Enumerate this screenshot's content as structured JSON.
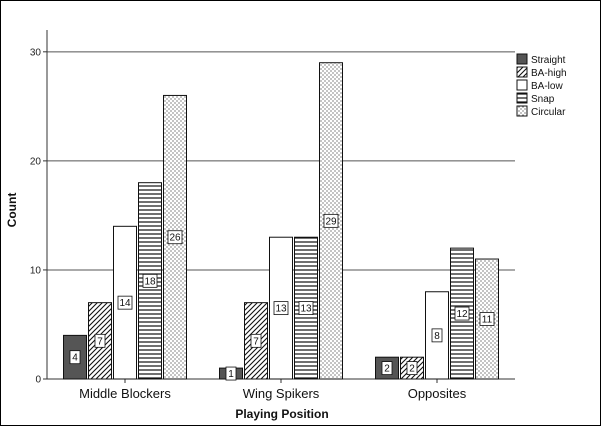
{
  "chart_data": {
    "type": "bar",
    "xlabel": "Playing Position",
    "ylabel": "Count",
    "ylim": [
      0,
      32
    ],
    "yticks": [
      0,
      10,
      20,
      30
    ],
    "grid": "horizontal",
    "legend_position": "top-right",
    "categories": [
      "Middle Blockers",
      "Wing Spikers",
      "Opposites"
    ],
    "series": [
      {
        "name": "Straight",
        "values": [
          4,
          1,
          2
        ],
        "pattern": "solid",
        "color": "#555555"
      },
      {
        "name": "BA-high",
        "values": [
          7,
          7,
          2
        ],
        "pattern": "diagonal",
        "color": "#ffffff"
      },
      {
        "name": "BA-low",
        "values": [
          14,
          13,
          8
        ],
        "pattern": "none",
        "color": "#ffffff"
      },
      {
        "name": "Snap",
        "values": [
          18,
          13,
          12
        ],
        "pattern": "horizontal",
        "color": "#ffffff"
      },
      {
        "name": "Circular",
        "values": [
          26,
          29,
          11
        ],
        "pattern": "dots",
        "color": "#ffffff"
      }
    ]
  }
}
